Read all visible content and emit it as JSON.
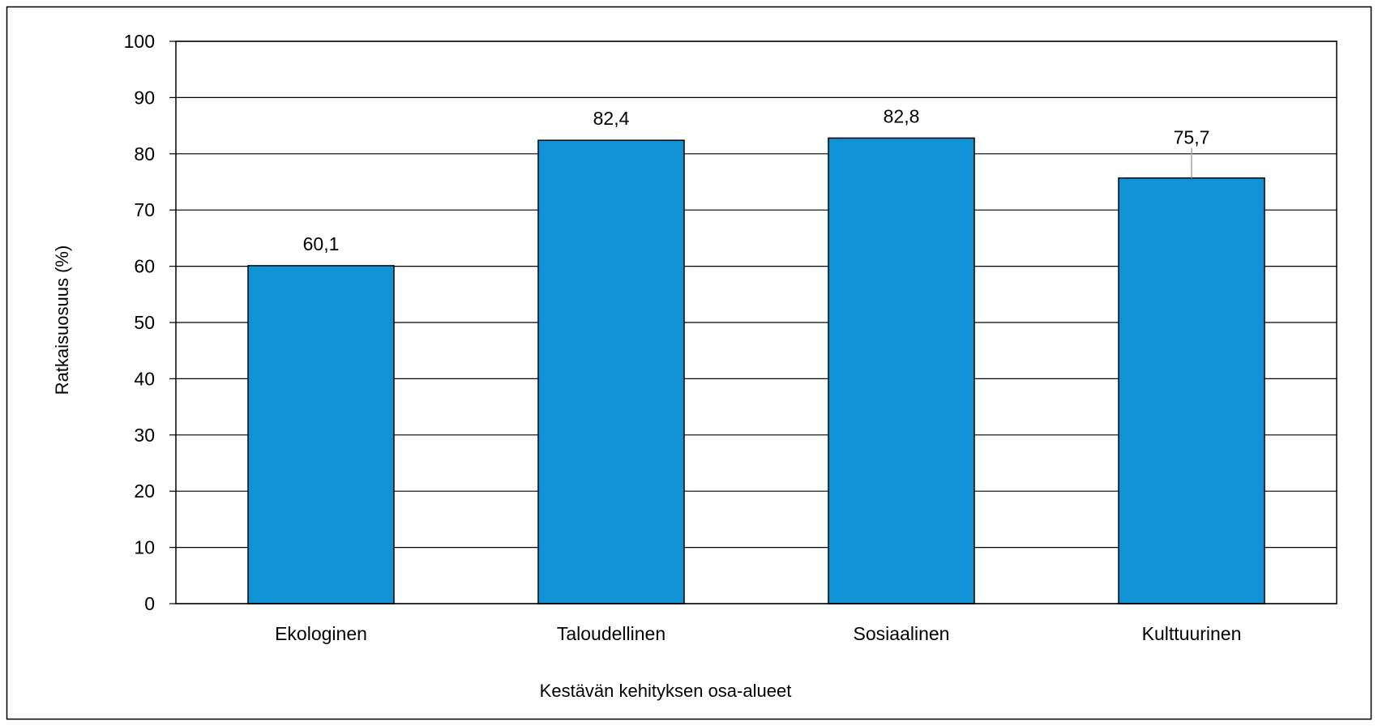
{
  "chart_data": {
    "type": "bar",
    "categories": [
      "Ekologinen",
      "Taloudellinen",
      "Sosiaalinen",
      "Kulttuurinen"
    ],
    "values": [
      60.1,
      82.4,
      82.8,
      75.7
    ],
    "value_labels": [
      "60,1",
      "82,4",
      "82,8",
      "75,7"
    ],
    "xlabel": "Kestävän kehityksen osa-alueet",
    "ylabel": "Ratkaisuosuus (%)",
    "ylim": [
      0,
      100
    ],
    "yticks": [
      0,
      10,
      20,
      30,
      40,
      50,
      60,
      70,
      80,
      90,
      100
    ],
    "grid": true,
    "legend": "none"
  },
  "colors": {
    "bar_fill": "#1192d4",
    "bar_stroke": "#000000",
    "grid": "#000000",
    "frame": "#000000",
    "leader_line": "#a6a6a6"
  }
}
